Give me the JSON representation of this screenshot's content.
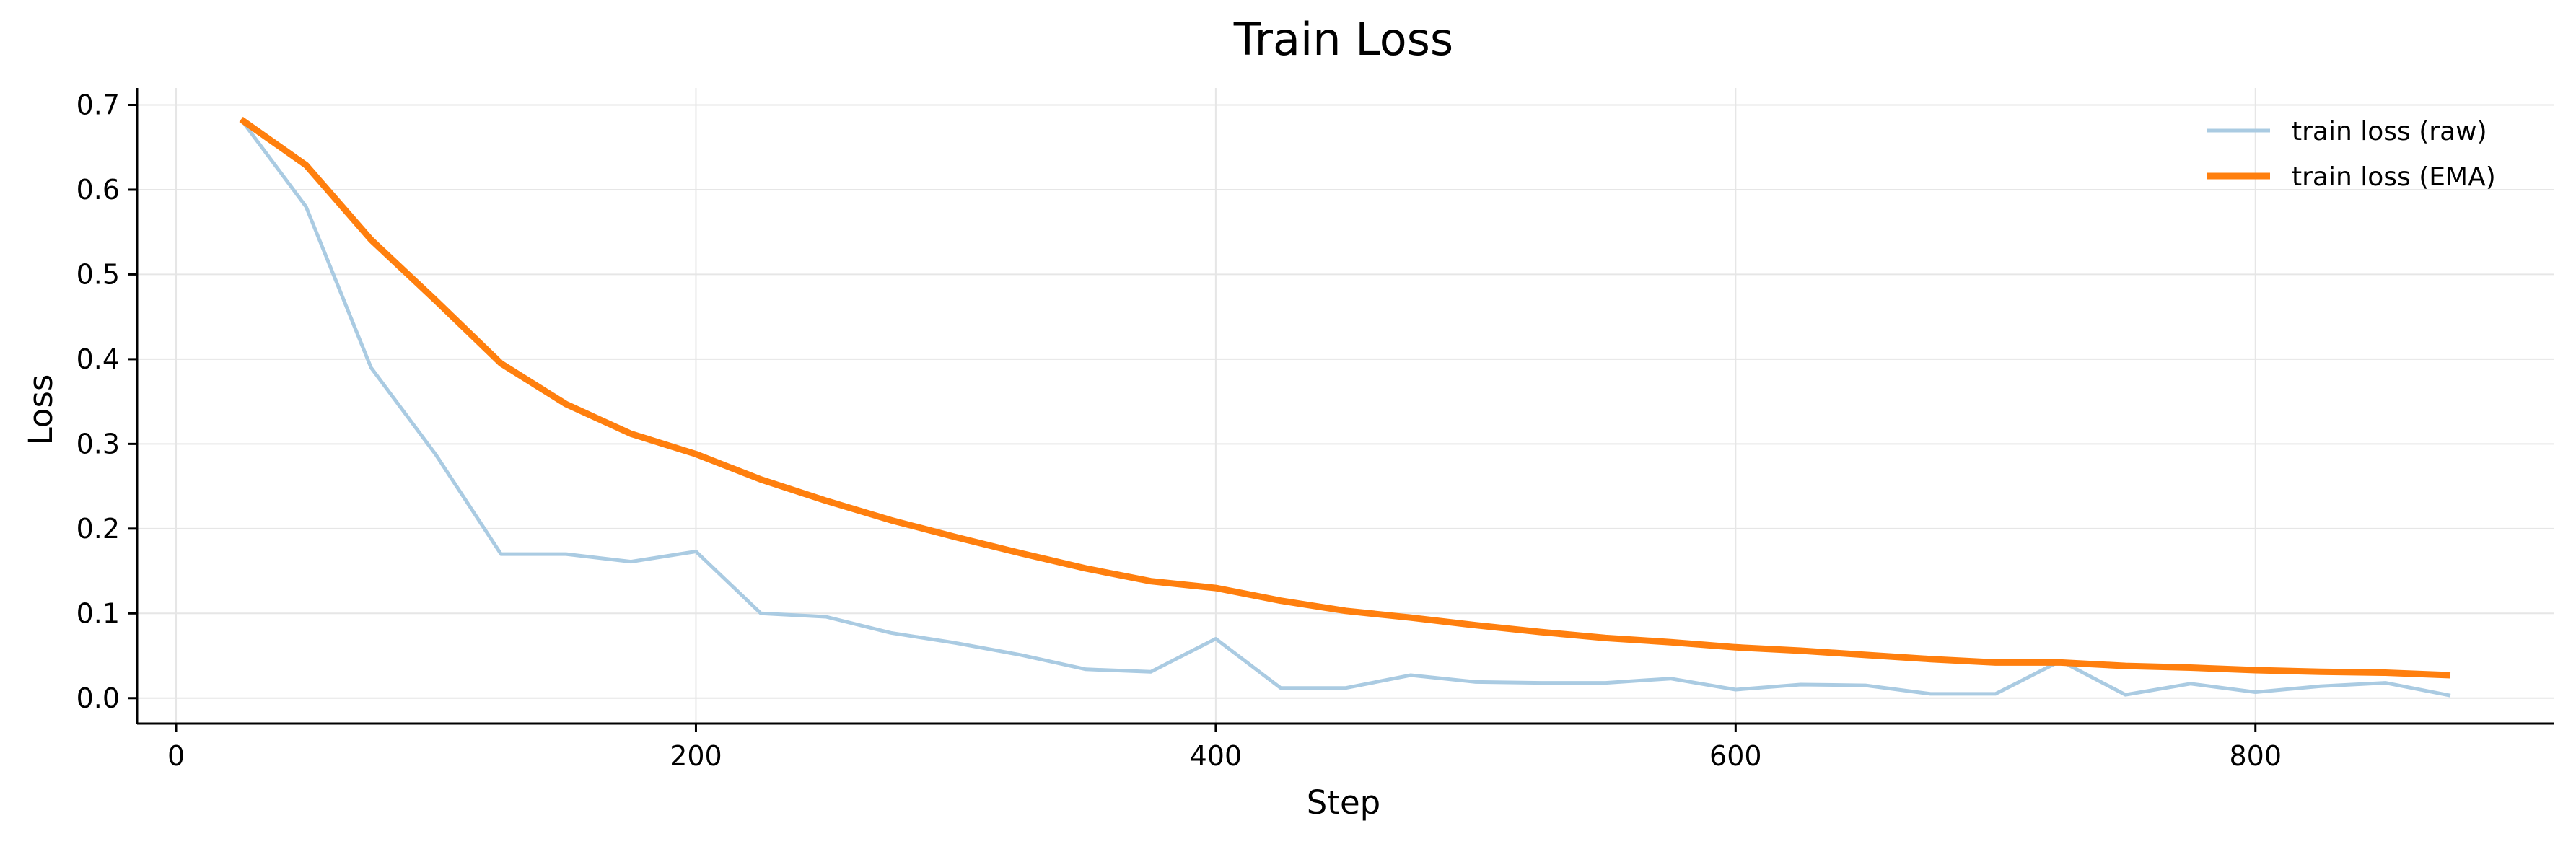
{
  "chart_data": {
    "type": "line",
    "title": "Train Loss",
    "xlabel": "Step",
    "ylabel": "Loss",
    "xlim": [
      -15,
      915
    ],
    "ylim": [
      -0.03,
      0.72
    ],
    "xticks": [
      0,
      200,
      400,
      600,
      800
    ],
    "yticks": [
      0.0,
      0.1,
      0.2,
      0.3,
      0.4,
      0.5,
      0.6,
      0.7
    ],
    "xtick_labels": [
      "0",
      "200",
      "400",
      "600",
      "800"
    ],
    "ytick_labels": [
      "0.0",
      "0.1",
      "0.2",
      "0.3",
      "0.4",
      "0.5",
      "0.6",
      "0.7"
    ],
    "grid": true,
    "legend_position": "top-right",
    "x": [
      25,
      50,
      75,
      100,
      125,
      150,
      175,
      200,
      225,
      250,
      275,
      300,
      325,
      350,
      375,
      400,
      425,
      450,
      475,
      500,
      525,
      550,
      575,
      600,
      625,
      650,
      675,
      700,
      725,
      750,
      775,
      800,
      825,
      850,
      875
    ],
    "series": [
      {
        "name": "train loss (raw)",
        "color": "#aacbe2",
        "values": [
          0.683,
          0.58,
          0.39,
          0.287,
          0.17,
          0.17,
          0.161,
          0.173,
          0.1,
          0.096,
          0.077,
          0.065,
          0.051,
          0.034,
          0.031,
          0.07,
          0.012,
          0.012,
          0.027,
          0.019,
          0.018,
          0.018,
          0.023,
          0.01,
          0.016,
          0.015,
          0.005,
          0.005,
          0.044,
          0.004,
          0.017,
          0.007,
          0.014,
          0.018,
          0.003
        ]
      },
      {
        "name": "train loss (EMA)",
        "color": "#ff7f0e",
        "values": [
          0.683,
          0.629,
          0.541,
          0.469,
          0.395,
          0.347,
          0.312,
          0.288,
          0.258,
          0.233,
          0.21,
          0.19,
          0.171,
          0.153,
          0.138,
          0.13,
          0.115,
          0.103,
          0.095,
          0.086,
          0.078,
          0.071,
          0.066,
          0.06,
          0.056,
          0.051,
          0.046,
          0.042,
          0.042,
          0.038,
          0.036,
          0.033,
          0.031,
          0.03,
          0.027
        ]
      }
    ]
  }
}
